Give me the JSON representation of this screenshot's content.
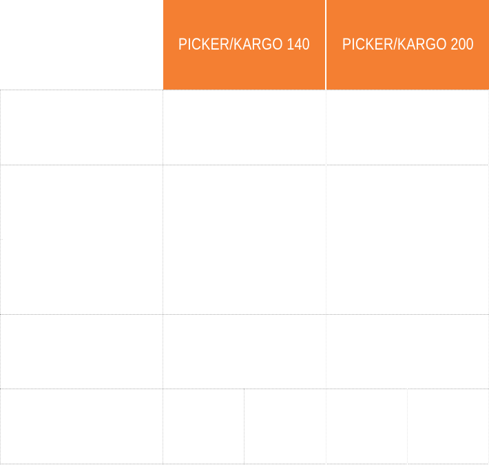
{
  "table": {
    "header_color": "#f47f32",
    "columns": [
      {
        "label": ""
      },
      {
        "label": "PICKER/KARGO 140"
      },
      {
        "label": "PICKER/KARGO 200"
      }
    ]
  }
}
